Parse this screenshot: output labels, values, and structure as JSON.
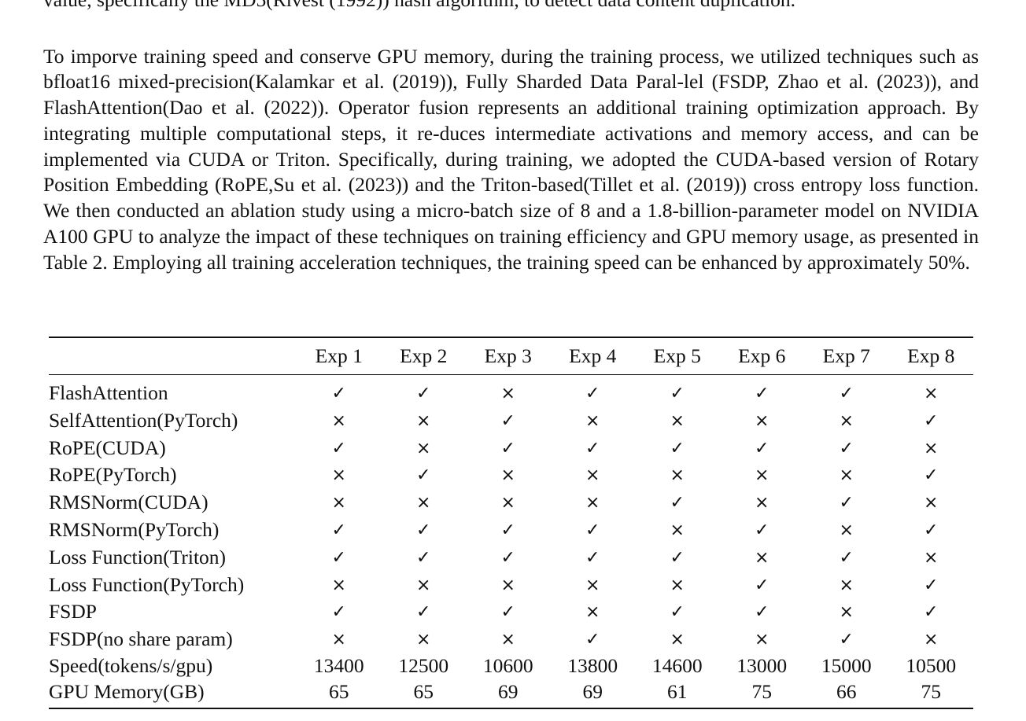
{
  "prev_line": "value, specifically the MD5(Rivest (1992)) hash algorithm, to detect data content duplication.",
  "paragraph": "To imporve training speed and conserve GPU memory, during the training process, we utilized techniques such as bfloat16 mixed-precision(Kalamkar et al. (2019)), Fully Sharded Data Paral-lel (FSDP, Zhao et al. (2023)), and FlashAttention(Dao et al. (2022)). Operator fusion represents an additional training optimization approach. By integrating multiple computational steps, it re-duces intermediate activations and memory access, and can be implemented via CUDA or Triton. Specifically, during training, we adopted the CUDA-based version of Rotary Position Embedding (RoPE,Su et al. (2023)) and the Triton-based(Tillet et al. (2019)) cross entropy loss function. We then conducted an ablation study using a micro-batch size of 8 and a 1.8-billion-parameter model on NVIDIA A100 GPU to analyze the impact of these techniques on training efficiency and GPU memory usage, as presented in Table 2. Employing all training acceleration techniques, the training speed can be enhanced by approximately 50%.",
  "table": {
    "headers": [
      "",
      "Exp 1",
      "Exp 2",
      "Exp 3",
      "Exp 4",
      "Exp 5",
      "Exp 6",
      "Exp 7",
      "Exp 8"
    ],
    "rows": [
      {
        "label": "FlashAttention",
        "cells": [
          "✓",
          "✓",
          "×",
          "✓",
          "✓",
          "✓",
          "✓",
          "×"
        ]
      },
      {
        "label": "SelfAttention(PyTorch)",
        "cells": [
          "×",
          "×",
          "✓",
          "×",
          "×",
          "×",
          "×",
          "✓"
        ]
      },
      {
        "label": "RoPE(CUDA)",
        "cells": [
          "✓",
          "×",
          "✓",
          "✓",
          "✓",
          "✓",
          "✓",
          "×"
        ]
      },
      {
        "label": "RoPE(PyTorch)",
        "cells": [
          "×",
          "✓",
          "×",
          "×",
          "×",
          "×",
          "×",
          "✓"
        ]
      },
      {
        "label": "RMSNorm(CUDA)",
        "cells": [
          "×",
          "×",
          "×",
          "×",
          "✓",
          "×",
          "✓",
          "×"
        ]
      },
      {
        "label": "RMSNorm(PyTorch)",
        "cells": [
          "✓",
          "✓",
          "✓",
          "✓",
          "×",
          "✓",
          "×",
          "✓"
        ]
      },
      {
        "label": "Loss Function(Triton)",
        "cells": [
          "✓",
          "✓",
          "✓",
          "✓",
          "✓",
          "×",
          "✓",
          "×"
        ]
      },
      {
        "label": "Loss Function(PyTorch)",
        "cells": [
          "×",
          "×",
          "×",
          "×",
          "×",
          "✓",
          "×",
          "✓"
        ]
      },
      {
        "label": "FSDP",
        "cells": [
          "✓",
          "✓",
          "✓",
          "×",
          "✓",
          "✓",
          "×",
          "✓"
        ]
      },
      {
        "label": "FSDP(no share param)",
        "cells": [
          "×",
          "×",
          "×",
          "✓",
          "×",
          "×",
          "✓",
          "×"
        ]
      },
      {
        "label": "Speed(tokens/s/gpu)",
        "cells": [
          "13400",
          "12500",
          "10600",
          "13800",
          "14600",
          "13000",
          "15000",
          "10500"
        ]
      },
      {
        "label": "GPU Memory(GB)",
        "cells": [
          "65",
          "65",
          "69",
          "69",
          "61",
          "75",
          "66",
          "75"
        ]
      }
    ]
  }
}
